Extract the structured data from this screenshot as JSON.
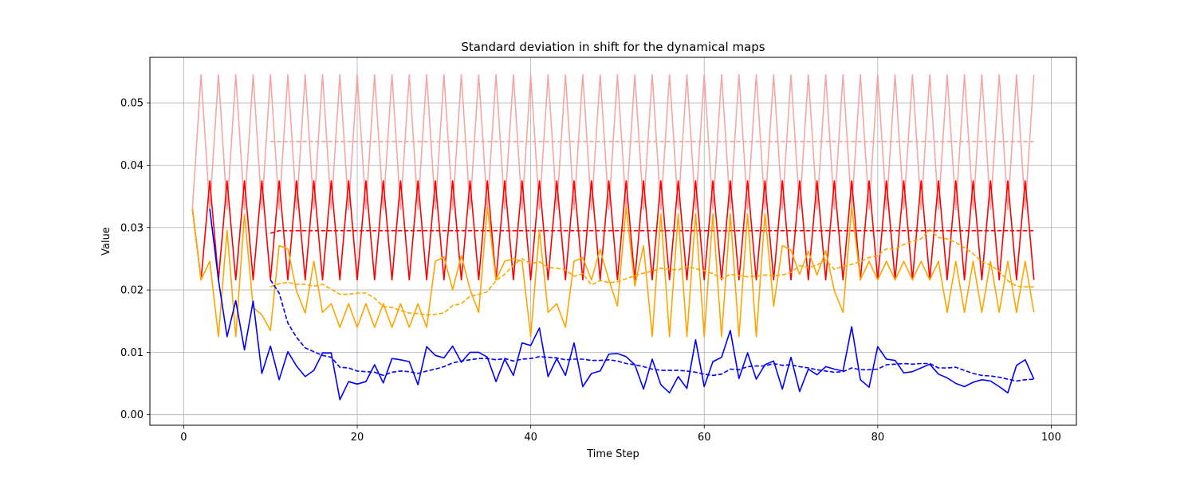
{
  "chart_data": {
    "type": "line",
    "title": "Standard deviation in shift for the dynamical maps",
    "xlabel": "Time Step",
    "ylabel": "Value",
    "xlim": [
      -3.9,
      102.9
    ],
    "ylim": [
      -0.0017,
      0.0573
    ],
    "xticks": [
      0,
      20,
      40,
      60,
      80,
      100
    ],
    "yticks": [
      0.0,
      0.01,
      0.02,
      0.03,
      0.04,
      0.05
    ],
    "xtick_labels": [
      "0",
      "20",
      "40",
      "60",
      "80",
      "100"
    ],
    "ytick_labels": [
      "0.00",
      "0.01",
      "0.02",
      "0.03",
      "0.04",
      "0.05"
    ],
    "grid": true,
    "legend": "none",
    "series": [
      {
        "color": "#f4a6a6",
        "style": "solid",
        "generator": {
          "kind": "alternating",
          "start": 1,
          "end": 98,
          "first_value": 0.033,
          "odd_value": 0.0329,
          "even_value": 0.0545
        }
      },
      {
        "color": "#f4a6a6",
        "style": "dashed",
        "x": [
          10,
          98
        ],
        "values": [
          0.0438,
          0.0438
        ]
      },
      {
        "color": "#ff0000",
        "style": "solid",
        "generator": {
          "kind": "alternating",
          "start": 1,
          "end": 98,
          "first_value": 0.033,
          "odd_value": 0.0375,
          "even_value": 0.0216
        }
      },
      {
        "color": "#ff0000",
        "style": "dashed",
        "x": [
          10,
          11,
          98
        ],
        "values": [
          0.0291,
          0.0295,
          0.0295
        ]
      },
      {
        "color": "#ffa500",
        "style": "solid",
        "x": [
          1,
          2,
          3,
          4,
          5,
          6,
          7,
          8,
          9,
          10,
          11,
          12,
          13,
          14,
          15,
          16,
          17,
          18,
          19,
          20,
          21,
          22,
          23,
          24,
          25,
          26,
          27,
          28,
          29,
          30,
          31,
          32,
          33,
          34,
          35,
          36,
          37,
          38,
          39,
          40,
          41,
          42,
          43,
          44,
          45,
          46,
          47,
          48,
          49,
          50,
          51,
          52,
          53,
          54,
          55,
          56,
          57,
          58,
          59,
          60,
          61,
          62,
          63,
          64,
          65,
          66,
          67,
          68,
          69,
          70,
          71,
          72,
          73,
          74,
          75,
          76,
          77,
          78,
          79,
          80,
          81,
          82,
          83,
          84,
          85,
          86,
          87,
          88,
          89,
          90,
          91,
          92,
          93,
          94,
          95,
          96,
          97,
          98
        ],
        "values": [
          0.033,
          0.0216,
          0.0246,
          0.0125,
          0.0296,
          0.0125,
          0.0321,
          0.0172,
          0.016,
          0.0135,
          0.0271,
          0.0266,
          0.0198,
          0.0163,
          0.0246,
          0.0164,
          0.0178,
          0.014,
          0.0178,
          0.014,
          0.0178,
          0.014,
          0.0178,
          0.014,
          0.0178,
          0.014,
          0.0178,
          0.014,
          0.0246,
          0.0253,
          0.02,
          0.0255,
          0.0201,
          0.0164,
          0.0333,
          0.0216,
          0.0246,
          0.025,
          0.0246,
          0.0125,
          0.0296,
          0.0164,
          0.0178,
          0.014,
          0.0246,
          0.0252,
          0.0216,
          0.0265,
          0.0216,
          0.0174,
          0.0333,
          0.0206,
          0.0271,
          0.0125,
          0.0322,
          0.0125,
          0.0322,
          0.0125,
          0.0322,
          0.0125,
          0.0322,
          0.0125,
          0.0322,
          0.0125,
          0.0322,
          0.0125,
          0.0322,
          0.0174,
          0.0271,
          0.0264,
          0.0225,
          0.0262,
          0.0224,
          0.0263,
          0.0199,
          0.0164,
          0.0333,
          0.0216,
          0.0246,
          0.0216,
          0.0246,
          0.0216,
          0.0246,
          0.0216,
          0.0246,
          0.0216,
          0.0246,
          0.0164,
          0.0246,
          0.0164,
          0.0246,
          0.0164,
          0.0246,
          0.0164,
          0.0246,
          0.0164,
          0.0246,
          0.0164
        ]
      },
      {
        "color": "#ffa500",
        "style": "dashed",
        "x": [
          10,
          11,
          12,
          13,
          14,
          15,
          16,
          17,
          18,
          19,
          20,
          21,
          22,
          23,
          24,
          25,
          26,
          27,
          28,
          29,
          30,
          31,
          32,
          33,
          34,
          35,
          36,
          37,
          38,
          39,
          40,
          41,
          42,
          43,
          44,
          45,
          46,
          47,
          48,
          49,
          50,
          51,
          52,
          53,
          54,
          55,
          56,
          57,
          58,
          59,
          60,
          61,
          62,
          63,
          64,
          65,
          66,
          67,
          68,
          69,
          70,
          71,
          72,
          73,
          74,
          75,
          76,
          77,
          78,
          79,
          80,
          81,
          82,
          83,
          84,
          85,
          86,
          87,
          88,
          89,
          90,
          91,
          92,
          93,
          94,
          95,
          96,
          97,
          98
        ],
        "values": [
          0.0205,
          0.021,
          0.0212,
          0.0209,
          0.0209,
          0.0206,
          0.0209,
          0.0201,
          0.0193,
          0.0193,
          0.0195,
          0.0195,
          0.0187,
          0.0173,
          0.0172,
          0.0167,
          0.0163,
          0.0162,
          0.016,
          0.0161,
          0.0163,
          0.0175,
          0.0178,
          0.019,
          0.0193,
          0.0197,
          0.0215,
          0.0225,
          0.024,
          0.025,
          0.0242,
          0.0245,
          0.0236,
          0.0235,
          0.0232,
          0.0222,
          0.0226,
          0.0208,
          0.0215,
          0.0212,
          0.0213,
          0.0218,
          0.0223,
          0.0227,
          0.023,
          0.0235,
          0.0233,
          0.0232,
          0.0238,
          0.0234,
          0.0231,
          0.0226,
          0.0218,
          0.0225,
          0.0223,
          0.0221,
          0.0222,
          0.0224,
          0.0223,
          0.0224,
          0.0228,
          0.0239,
          0.0236,
          0.024,
          0.0248,
          0.0233,
          0.0238,
          0.0241,
          0.0245,
          0.0252,
          0.0255,
          0.0266,
          0.0265,
          0.0273,
          0.0278,
          0.0282,
          0.0297,
          0.0284,
          0.0282,
          0.0276,
          0.0268,
          0.0258,
          0.0245,
          0.024,
          0.023,
          0.0215,
          0.0206,
          0.0205,
          0.0205
        ]
      },
      {
        "color": "#0000ff",
        "style": "solid",
        "x": [
          3,
          4,
          5,
          6,
          7,
          8,
          9,
          10,
          11,
          12,
          13,
          14,
          15,
          16,
          17,
          18,
          19,
          20,
          21,
          22,
          23,
          24,
          25,
          26,
          27,
          28,
          29,
          30,
          31,
          32,
          33,
          34,
          35,
          36,
          37,
          38,
          39,
          40,
          41,
          42,
          43,
          44,
          45,
          46,
          47,
          48,
          49,
          50,
          51,
          52,
          53,
          54,
          55,
          56,
          57,
          58,
          59,
          60,
          61,
          62,
          63,
          64,
          65,
          66,
          67,
          68,
          69,
          70,
          71,
          72,
          73,
          74,
          75,
          76,
          77,
          78,
          79,
          80,
          81,
          82,
          83,
          84,
          85,
          86,
          87,
          88,
          89,
          90,
          91,
          92,
          93,
          94,
          95,
          96,
          97,
          98
        ],
        "values": [
          0.033,
          0.0216,
          0.0125,
          0.0183,
          0.0104,
          0.0182,
          0.0066,
          0.011,
          0.0056,
          0.0101,
          0.0078,
          0.0061,
          0.0071,
          0.0099,
          0.0099,
          0.0024,
          0.0053,
          0.0049,
          0.0053,
          0.008,
          0.0051,
          0.009,
          0.0088,
          0.0085,
          0.0048,
          0.0109,
          0.0095,
          0.0091,
          0.011,
          0.0084,
          0.01,
          0.01,
          0.0092,
          0.0053,
          0.0089,
          0.0063,
          0.0115,
          0.0111,
          0.0139,
          0.0061,
          0.009,
          0.0063,
          0.0115,
          0.0045,
          0.0066,
          0.007,
          0.0097,
          0.0098,
          0.0093,
          0.008,
          0.0041,
          0.0089,
          0.0048,
          0.0035,
          0.0061,
          0.0042,
          0.012,
          0.0045,
          0.0085,
          0.0092,
          0.0135,
          0.0058,
          0.0099,
          0.0057,
          0.008,
          0.0086,
          0.0041,
          0.0092,
          0.0037,
          0.0073,
          0.0064,
          0.0077,
          0.0073,
          0.007,
          0.0141,
          0.0056,
          0.0044,
          0.0109,
          0.0089,
          0.0087,
          0.0067,
          0.0069,
          0.0075,
          0.0081,
          0.0065,
          0.0059,
          0.005,
          0.0045,
          0.0052,
          0.0056,
          0.0054,
          0.0045,
          0.0035,
          0.0079,
          0.0088,
          0.0057
        ]
      },
      {
        "color": "#0000ff",
        "style": "dashed",
        "x": [
          10,
          11,
          12,
          13,
          14,
          15,
          16,
          17,
          18,
          19,
          20,
          21,
          22,
          23,
          24,
          25,
          26,
          27,
          28,
          29,
          30,
          31,
          32,
          33,
          34,
          35,
          36,
          37,
          38,
          39,
          40,
          41,
          42,
          43,
          44,
          45,
          46,
          47,
          48,
          49,
          50,
          51,
          52,
          53,
          54,
          55,
          56,
          57,
          58,
          59,
          60,
          61,
          62,
          63,
          64,
          65,
          66,
          67,
          68,
          69,
          70,
          71,
          72,
          73,
          74,
          75,
          76,
          77,
          78,
          79,
          80,
          81,
          82,
          83,
          84,
          85,
          86,
          87,
          88,
          89,
          90,
          91,
          92,
          93,
          94,
          95,
          96,
          97,
          98
        ],
        "values": [
          0.0216,
          0.0195,
          0.0147,
          0.0124,
          0.0107,
          0.0101,
          0.0095,
          0.0092,
          0.0076,
          0.0075,
          0.007,
          0.0069,
          0.0068,
          0.0063,
          0.0068,
          0.007,
          0.0069,
          0.0066,
          0.007,
          0.0073,
          0.0077,
          0.0083,
          0.0086,
          0.0088,
          0.009,
          0.009,
          0.0088,
          0.009,
          0.0086,
          0.0089,
          0.009,
          0.0093,
          0.0092,
          0.0091,
          0.0088,
          0.0089,
          0.0089,
          0.0087,
          0.0087,
          0.0088,
          0.0086,
          0.0082,
          0.008,
          0.0077,
          0.0073,
          0.0071,
          0.0071,
          0.0071,
          0.007,
          0.0068,
          0.0065,
          0.0063,
          0.0065,
          0.0073,
          0.0072,
          0.0077,
          0.0078,
          0.0078,
          0.0082,
          0.0079,
          0.008,
          0.0077,
          0.0075,
          0.0072,
          0.007,
          0.0068,
          0.0069,
          0.0075,
          0.0072,
          0.0072,
          0.0073,
          0.008,
          0.0081,
          0.0082,
          0.0081,
          0.0082,
          0.0082,
          0.0075,
          0.0075,
          0.0076,
          0.0071,
          0.0066,
          0.0063,
          0.0062,
          0.006,
          0.0057,
          0.0054,
          0.0056,
          0.0057
        ]
      }
    ]
  }
}
